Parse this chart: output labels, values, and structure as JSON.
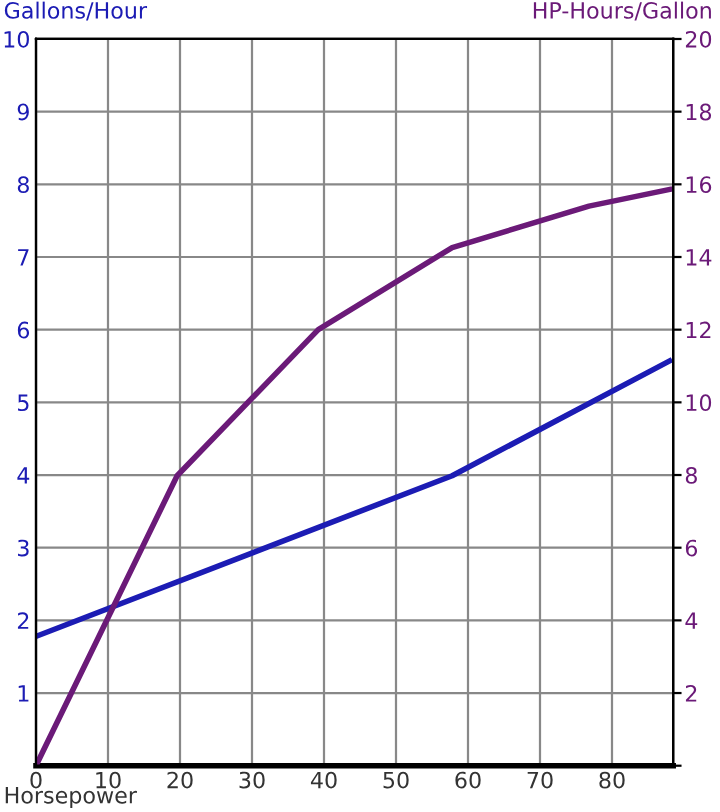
{
  "chart_data": {
    "type": "line",
    "xlabel": "Horsepower",
    "ylabel": "Gallons/Hour",
    "y2label": "HP-Hours/Gallon",
    "series": [
      {
        "color": "#1c1cb4",
        "x": [
          0,
          57.8,
          88
        ],
        "values": [
          1.78,
          3.99,
          5.57
        ]
      },
      {
        "color": "#6b1a78",
        "axis": "y2",
        "x": [
          0,
          19.6,
          39.2,
          57.8,
          76.8,
          88
        ],
        "values": [
          0,
          7.98,
          12.0,
          14.26,
          15.4,
          15.86
        ]
      }
    ],
    "xlim": [
      0,
      88.5
    ],
    "xticks": [
      0,
      10,
      20,
      30,
      40,
      50,
      60,
      70,
      80
    ],
    "ylim": [
      0,
      10
    ],
    "yticks": [
      {
        "value": 0,
        "label": null
      },
      1,
      2,
      3,
      4,
      5,
      6,
      7,
      8,
      9,
      10
    ],
    "y2lim": [
      0,
      20
    ],
    "y2ticks": [
      {
        "value": 0,
        "label": null
      },
      2,
      4,
      6,
      8,
      10,
      12,
      14,
      16,
      18,
      20
    ],
    "grid": true,
    "marker": "none",
    "line_style": "solid"
  }
}
